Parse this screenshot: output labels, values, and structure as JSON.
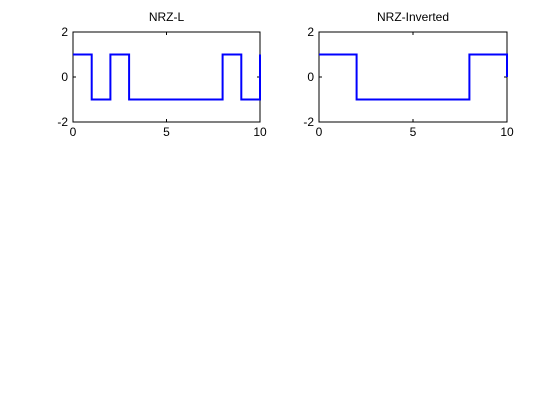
{
  "chart_data": [
    {
      "type": "line",
      "step": true,
      "title": "NRZ-L",
      "xlabel": "",
      "ylabel": "",
      "xlim": [
        0,
        10
      ],
      "ylim": [
        -2,
        2
      ],
      "xticks": [
        0,
        5,
        10
      ],
      "yticks": [
        -2,
        0,
        2
      ],
      "grid": false,
      "color": "#0000ff",
      "series": [
        {
          "x": [
            0,
            1,
            1,
            2,
            2,
            3,
            3,
            8,
            8,
            9,
            9,
            10,
            10
          ],
          "y": [
            1,
            1,
            -1,
            -1,
            1,
            1,
            -1,
            -1,
            1,
            1,
            -1,
            -1,
            1
          ]
        }
      ]
    },
    {
      "type": "line",
      "step": true,
      "title": "NRZ-Inverted",
      "xlabel": "",
      "ylabel": "",
      "xlim": [
        0,
        10
      ],
      "ylim": [
        -2,
        2
      ],
      "xticks": [
        0,
        5,
        10
      ],
      "yticks": [
        -2,
        0,
        2
      ],
      "grid": false,
      "color": "#0000ff",
      "series": [
        {
          "x": [
            0,
            2,
            2,
            8,
            8,
            10,
            10
          ],
          "y": [
            1,
            1,
            -1,
            -1,
            1,
            1,
            0
          ]
        }
      ]
    }
  ]
}
